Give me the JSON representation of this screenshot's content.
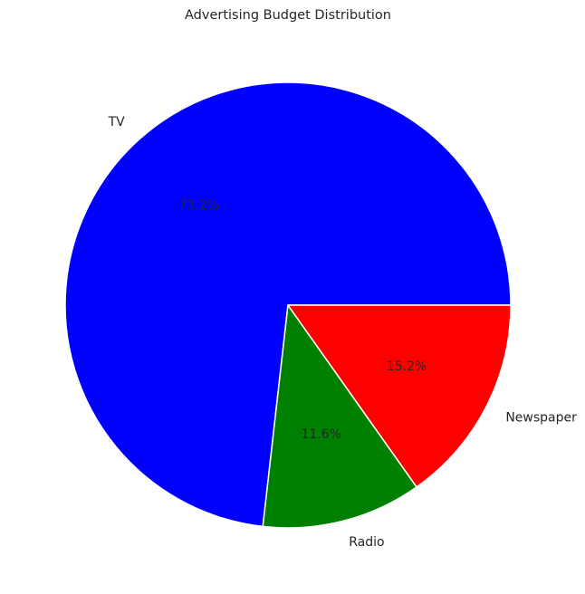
{
  "chart_data": {
    "type": "pie",
    "title": "Advertising Budget Distribution",
    "categories": [
      "TV",
      "Radio",
      "Newspaper"
    ],
    "values": [
      73.2,
      11.6,
      15.2
    ],
    "value_labels": [
      "73.2%",
      "11.6%",
      "15.2%"
    ],
    "colors": [
      "#0000ff",
      "#008000",
      "#ff0000"
    ],
    "start_angle_deg": 0,
    "direction": "counterclockwise",
    "legend": "none",
    "slice_edge_color": "#ffffff"
  }
}
